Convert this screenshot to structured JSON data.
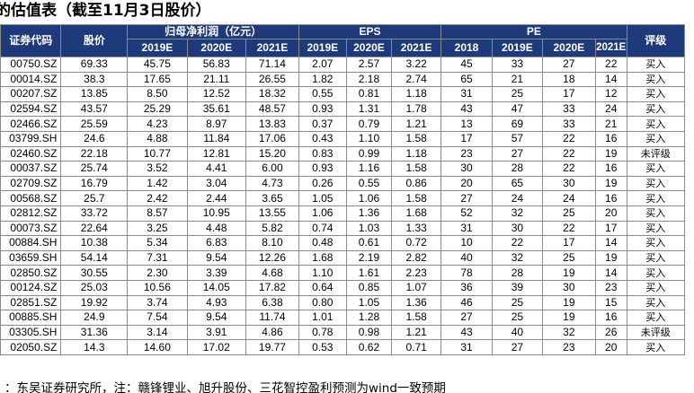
{
  "title": "的估值表（截至11月3日股价）",
  "headers": {
    "code": "证券代码",
    "price": "股价",
    "profit_group": "归母净利润（亿元）",
    "eps_group": "EPS",
    "pe_group": "PE",
    "rating": "评级",
    "profit_years": [
      "2019E",
      "2020E",
      "2021E"
    ],
    "eps_years": [
      "2019E",
      "2020E",
      "2021E"
    ],
    "pe_years": [
      "2018",
      "2019E",
      "2020E",
      "2021E"
    ]
  },
  "rows": [
    [
      "00750.SZ",
      "69.33",
      "45.75",
      "56.83",
      "71.14",
      "2.07",
      "2.57",
      "3.22",
      "45",
      "33",
      "27",
      "22",
      "买入"
    ],
    [
      "00014.SZ",
      "38.3",
      "17.65",
      "21.11",
      "26.55",
      "1.82",
      "2.18",
      "2.74",
      "65",
      "21",
      "18",
      "14",
      "买入"
    ],
    [
      "00207.SZ",
      "13.85",
      "8.50",
      "12.52",
      "18.32",
      "0.55",
      "0.81",
      "1.18",
      "31",
      "25",
      "17",
      "12",
      "买入"
    ],
    [
      "02594.SZ",
      "43.57",
      "25.29",
      "35.61",
      "48.57",
      "0.93",
      "1.31",
      "1.78",
      "43",
      "47",
      "33",
      "24",
      "买入"
    ],
    [
      "02466.SZ",
      "25.59",
      "4.23",
      "8.97",
      "13.83",
      "0.37",
      "0.79",
      "1.21",
      "13",
      "69",
      "33",
      "21",
      "买入"
    ],
    [
      "03799.SH",
      "24.6",
      "4.88",
      "11.84",
      "17.06",
      "0.43",
      "1.10",
      "1.58",
      "17",
      "57",
      "22",
      "16",
      "买入"
    ],
    [
      "02460.SZ",
      "22.18",
      "10.77",
      "12.81",
      "15.20",
      "0.83",
      "0.99",
      "1.18",
      "23",
      "27",
      "22",
      "19",
      "未评级"
    ],
    [
      "00037.SZ",
      "25.74",
      "3.52",
      "4.41",
      "6.00",
      "0.93",
      "1.16",
      "1.58",
      "30",
      "28",
      "22",
      "16",
      "买入"
    ],
    [
      "02709.SZ",
      "16.79",
      "1.42",
      "3.04",
      "4.73",
      "0.26",
      "0.55",
      "0.86",
      "20",
      "65",
      "30",
      "19",
      "买入"
    ],
    [
      "00568.SZ",
      "25.7",
      "2.42",
      "2.44",
      "3.65",
      "1.05",
      "1.06",
      "1.58",
      "27",
      "24",
      "24",
      "16",
      "买入"
    ],
    [
      "02812.SZ",
      "33.72",
      "8.57",
      "10.95",
      "13.55",
      "1.06",
      "1.36",
      "1.68",
      "52",
      "32",
      "25",
      "20",
      "买入"
    ],
    [
      "00073.SZ",
      "22.64",
      "3.25",
      "4.48",
      "5.82",
      "0.74",
      "1.03",
      "1.33",
      "31",
      "30",
      "22",
      "17",
      "买入"
    ],
    [
      "00884.SH",
      "10.38",
      "5.34",
      "6.83",
      "8.10",
      "0.48",
      "0.61",
      "0.72",
      "10",
      "22",
      "17",
      "14",
      "买入"
    ],
    [
      "03659.SH",
      "54.14",
      "7.31",
      "9.54",
      "12.26",
      "1.68",
      "2.19",
      "2.82",
      "40",
      "32",
      "25",
      "19",
      "买入"
    ],
    [
      "02850.SZ",
      "30.55",
      "2.30",
      "3.39",
      "4.68",
      "1.10",
      "1.61",
      "2.23",
      "78",
      "28",
      "19",
      "14",
      "买入"
    ],
    [
      "00124.SZ",
      "25.03",
      "10.56",
      "14.05",
      "17.82",
      "0.64",
      "0.85",
      "1.07",
      "36",
      "39",
      "30",
      "23",
      "买入"
    ],
    [
      "02851.SZ",
      "19.92",
      "3.74",
      "4.93",
      "6.38",
      "0.80",
      "1.05",
      "1.36",
      "46",
      "25",
      "19",
      "15",
      "买入"
    ],
    [
      "00885.SH",
      "24.9",
      "7.54",
      "9.54",
      "11.74",
      "1.01",
      "1.28",
      "1.58",
      "27",
      "25",
      "19",
      "16",
      "买入"
    ],
    [
      "03305.SH",
      "31.36",
      "3.14",
      "3.91",
      "4.86",
      "0.78",
      "0.98",
      "1.21",
      "43",
      "40",
      "32",
      "26",
      "未评级"
    ],
    [
      "02050.SZ",
      "14.3",
      "14.60",
      "17.02",
      "19.77",
      "0.53",
      "0.62",
      "0.71",
      "31",
      "27",
      "23",
      "20",
      "买入"
    ]
  ],
  "footer": "：东吴证券研究所，注：赣锋锂业、旭升股份、三花智控盈利预测为wind一致预期"
}
